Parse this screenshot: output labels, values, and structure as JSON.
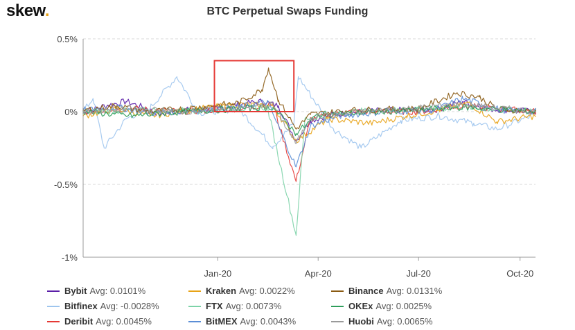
{
  "header": {
    "logo_text": "skew",
    "logo_dot": ".",
    "title": "BTC Perpetual Swaps Funding"
  },
  "colors": {
    "accent_logo_dot": "#e8a317",
    "highlight_box": "#e53935",
    "grid": "#d8d8d8"
  },
  "chart_data": {
    "type": "line",
    "title": "BTC Perpetual Swaps Funding",
    "xlabel": "",
    "ylabel": "",
    "x_range": [
      "2019-09-01",
      "2020-10-15"
    ],
    "ylim": [
      -1.0,
      0.5
    ],
    "y_unit": "%",
    "y_ticks": [
      0.5,
      0,
      -0.5,
      -1.0
    ],
    "y_tick_labels": [
      "0.5%",
      "0%",
      "-0.5%",
      "-1%"
    ],
    "x_ticks": [
      "2020-01-01",
      "2020-04-01",
      "2020-07-01",
      "2020-10-01"
    ],
    "x_tick_labels": [
      "Jan-20",
      "Apr-20",
      "Jul-20",
      "Oct-20"
    ],
    "grid": "horizontal dashed",
    "legend_position": "bottom",
    "highlight_box": {
      "x_start": "2019-12-29",
      "x_end": "2020-03-10",
      "y_low": 0.0,
      "y_high": 0.35
    },
    "series": [
      {
        "name": "Bybit",
        "avg_label": "Avg: 0.0101%",
        "color": "#5b1fa8",
        "values": [
          [
            "2019-09-01",
            -0.01
          ],
          [
            "2019-09-20",
            0.04
          ],
          [
            "2019-10-10",
            0.07
          ],
          [
            "2019-10-25",
            0.03
          ],
          [
            "2019-11-10",
            -0.02
          ],
          [
            "2019-12-01",
            0.01
          ],
          [
            "2020-01-01",
            0.02
          ],
          [
            "2020-01-20",
            0.05
          ],
          [
            "2020-02-10",
            0.07
          ],
          [
            "2020-02-25",
            0.04
          ],
          [
            "2020-03-12",
            -0.2
          ],
          [
            "2020-03-25",
            -0.06
          ],
          [
            "2020-04-15",
            -0.02
          ],
          [
            "2020-05-10",
            0.0
          ],
          [
            "2020-06-10",
            0.01
          ],
          [
            "2020-07-15",
            0.01
          ],
          [
            "2020-08-10",
            0.07
          ],
          [
            "2020-09-01",
            0.02
          ],
          [
            "2020-10-15",
            0.0
          ]
        ]
      },
      {
        "name": "Bitfinex",
        "avg_label": "Avg: -0.0028%",
        "color": "#9ec5ee",
        "values": [
          [
            "2019-09-01",
            0.0
          ],
          [
            "2019-09-10",
            0.09
          ],
          [
            "2019-09-20",
            -0.25
          ],
          [
            "2019-10-10",
            -0.05
          ],
          [
            "2019-11-01",
            0.03
          ],
          [
            "2019-11-25",
            0.24
          ],
          [
            "2019-12-15",
            -0.01
          ],
          [
            "2020-01-20",
            0.02
          ],
          [
            "2020-02-20",
            -0.24
          ],
          [
            "2020-03-10",
            -0.08
          ],
          [
            "2020-03-14",
            0.24
          ],
          [
            "2020-04-15",
            -0.12
          ],
          [
            "2020-05-10",
            -0.25
          ],
          [
            "2020-06-15",
            -0.06
          ],
          [
            "2020-07-20",
            -0.03
          ],
          [
            "2020-08-20",
            -0.08
          ],
          [
            "2020-09-10",
            -0.12
          ],
          [
            "2020-10-15",
            -0.02
          ]
        ]
      },
      {
        "name": "Deribit",
        "avg_label": "Avg: 0.0045%",
        "color": "#e53935",
        "values": [
          [
            "2019-09-01",
            0.0
          ],
          [
            "2019-10-15",
            0.02
          ],
          [
            "2019-12-01",
            0.0
          ],
          [
            "2020-01-20",
            0.02
          ],
          [
            "2020-02-20",
            0.05
          ],
          [
            "2020-03-12",
            -0.48
          ],
          [
            "2020-03-25",
            -0.05
          ],
          [
            "2020-05-01",
            0.0
          ],
          [
            "2020-07-01",
            0.0
          ],
          [
            "2020-08-10",
            0.04
          ],
          [
            "2020-10-15",
            0.0
          ]
        ]
      },
      {
        "name": "Kraken",
        "avg_label": "Avg: 0.0022%",
        "color": "#e8a317",
        "values": [
          [
            "2019-09-01",
            -0.03
          ],
          [
            "2019-10-01",
            0.02
          ],
          [
            "2019-11-01",
            -0.03
          ],
          [
            "2019-12-15",
            0.02
          ],
          [
            "2020-01-20",
            0.05
          ],
          [
            "2020-02-20",
            0.04
          ],
          [
            "2020-03-12",
            -0.2
          ],
          [
            "2020-04-10",
            -0.05
          ],
          [
            "2020-05-20",
            -0.08
          ],
          [
            "2020-06-20",
            -0.03
          ],
          [
            "2020-07-20",
            0.01
          ],
          [
            "2020-08-15",
            0.06
          ],
          [
            "2020-09-10",
            -0.07
          ],
          [
            "2020-10-15",
            -0.03
          ]
        ]
      },
      {
        "name": "FTX",
        "avg_label": "Avg: 0.0073%",
        "color": "#7dd3a8",
        "values": [
          [
            "2019-09-01",
            0.0
          ],
          [
            "2019-11-01",
            0.01
          ],
          [
            "2020-01-01",
            0.01
          ],
          [
            "2020-02-15",
            0.03
          ],
          [
            "2020-03-12",
            -0.85
          ],
          [
            "2020-03-20",
            -0.05
          ],
          [
            "2020-05-01",
            0.0
          ],
          [
            "2020-08-10",
            0.03
          ],
          [
            "2020-10-15",
            0.0
          ]
        ]
      },
      {
        "name": "BitMEX",
        "avg_label": "Avg: 0.0043%",
        "color": "#5b8ed6",
        "values": [
          [
            "2019-09-01",
            0.01
          ],
          [
            "2019-10-01",
            0.03
          ],
          [
            "2019-11-01",
            -0.01
          ],
          [
            "2019-12-15",
            0.01
          ],
          [
            "2020-01-20",
            0.03
          ],
          [
            "2020-02-15",
            0.07
          ],
          [
            "2020-03-12",
            -0.38
          ],
          [
            "2020-03-25",
            -0.1
          ],
          [
            "2020-04-20",
            -0.03
          ],
          [
            "2020-06-01",
            0.0
          ],
          [
            "2020-07-15",
            0.01
          ],
          [
            "2020-08-10",
            0.09
          ],
          [
            "2020-09-15",
            0.01
          ],
          [
            "2020-10-15",
            0.0
          ]
        ]
      },
      {
        "name": "Binance",
        "avg_label": "Avg: 0.0131%",
        "color": "#8a5a12",
        "values": [
          [
            "2019-09-01",
            0.01
          ],
          [
            "2019-10-01",
            0.04
          ],
          [
            "2019-11-01",
            0.0
          ],
          [
            "2019-12-15",
            0.03
          ],
          [
            "2020-01-20",
            0.06
          ],
          [
            "2020-02-10",
            0.15
          ],
          [
            "2020-02-16",
            0.3
          ],
          [
            "2020-02-25",
            0.08
          ],
          [
            "2020-03-12",
            -0.12
          ],
          [
            "2020-03-25",
            -0.02
          ],
          [
            "2020-05-01",
            0.01
          ],
          [
            "2020-07-01",
            0.02
          ],
          [
            "2020-08-05",
            0.13
          ],
          [
            "2020-08-25",
            0.1
          ],
          [
            "2020-09-10",
            0.02
          ],
          [
            "2020-10-15",
            0.0
          ]
        ]
      },
      {
        "name": "OKEx",
        "avg_label": "Avg: 0.0025%",
        "color": "#2e9e5b",
        "values": [
          [
            "2019-09-01",
            0.0
          ],
          [
            "2019-10-15",
            -0.03
          ],
          [
            "2019-12-01",
            0.0
          ],
          [
            "2020-01-20",
            0.02
          ],
          [
            "2020-02-20",
            0.03
          ],
          [
            "2020-03-12",
            -0.15
          ],
          [
            "2020-04-01",
            -0.02
          ],
          [
            "2020-06-01",
            0.0
          ],
          [
            "2020-08-10",
            0.03
          ],
          [
            "2020-10-15",
            0.0
          ]
        ]
      },
      {
        "name": "Huobi",
        "avg_label": "Avg: 0.0065%",
        "color": "#9a9a9a",
        "values": [
          [
            "2019-09-01",
            0.0
          ],
          [
            "2019-10-15",
            0.02
          ],
          [
            "2019-12-01",
            0.0
          ],
          [
            "2020-01-20",
            0.02
          ],
          [
            "2020-02-20",
            0.05
          ],
          [
            "2020-03-12",
            -0.22
          ],
          [
            "2020-03-25",
            -0.04
          ],
          [
            "2020-05-15",
            0.0
          ],
          [
            "2020-08-10",
            0.05
          ],
          [
            "2020-10-15",
            0.0
          ]
        ]
      }
    ]
  }
}
